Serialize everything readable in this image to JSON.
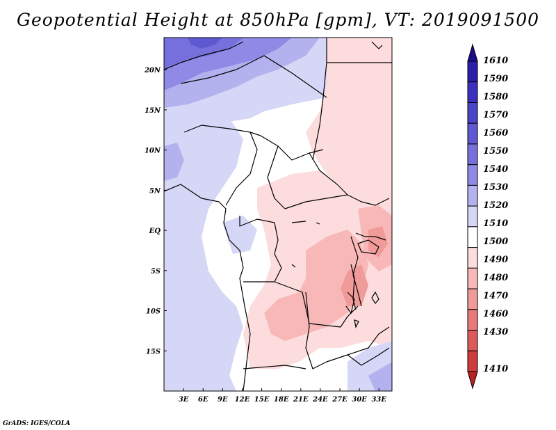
{
  "title": "Geopotential Height at 850hPa [gpm], VT: 2019091500",
  "credit": "GrADS: IGES/COLA",
  "map": {
    "variable": "Geopotential Height",
    "level": "850hPa",
    "units": "gpm",
    "valid_time": "2019091500",
    "lon_range": [
      0,
      35
    ],
    "lat_range": [
      -20,
      24
    ],
    "lat_labels": [
      {
        "text": "20N",
        "lat": 20
      },
      {
        "text": "15N",
        "lat": 15
      },
      {
        "text": "10N",
        "lat": 10
      },
      {
        "text": "5N",
        "lat": 5
      },
      {
        "text": "EQ",
        "lat": 0
      },
      {
        "text": "5S",
        "lat": -5
      },
      {
        "text": "10S",
        "lat": -10
      },
      {
        "text": "15S",
        "lat": -15
      }
    ],
    "lon_labels": [
      {
        "text": "3E",
        "lon": 3
      },
      {
        "text": "6E",
        "lon": 6
      },
      {
        "text": "9E",
        "lon": 9
      },
      {
        "text": "12E",
        "lon": 12
      },
      {
        "text": "15E",
        "lon": 15
      },
      {
        "text": "18E",
        "lon": 18
      },
      {
        "text": "21E",
        "lon": 21
      },
      {
        "text": "24E",
        "lon": 24
      },
      {
        "text": "27E",
        "lon": 27
      },
      {
        "text": "30E",
        "lon": 30
      },
      {
        "text": "33E",
        "lon": 33
      }
    ]
  },
  "colorbar": {
    "levels": [
      {
        "label": "1610",
        "color": "#1a0c8c"
      },
      {
        "label": "1590",
        "color": "#2a20a8"
      },
      {
        "label": "1580",
        "color": "#3a32bc"
      },
      {
        "label": "1570",
        "color": "#4a44c8"
      },
      {
        "label": "1560",
        "color": "#5e58d2"
      },
      {
        "label": "1550",
        "color": "#7670dc"
      },
      {
        "label": "1540",
        "color": "#8e8ae6"
      },
      {
        "label": "1530",
        "color": "#b4b2ee"
      },
      {
        "label": "1520",
        "color": "#d6d6f6"
      },
      {
        "label": "1510",
        "color": "#ffffff"
      },
      {
        "label": "1500",
        "color": "#fcdcdc"
      },
      {
        "label": "1490",
        "color": "#f8b8b8"
      },
      {
        "label": "1480",
        "color": "#f09a9a"
      },
      {
        "label": "1470",
        "color": "#e87a7a"
      },
      {
        "label": "1460",
        "color": "#dc5a5a"
      },
      {
        "label": "1430",
        "color": "#cc3c3c"
      },
      {
        "label": "1410",
        "color": "#b82222"
      }
    ]
  }
}
